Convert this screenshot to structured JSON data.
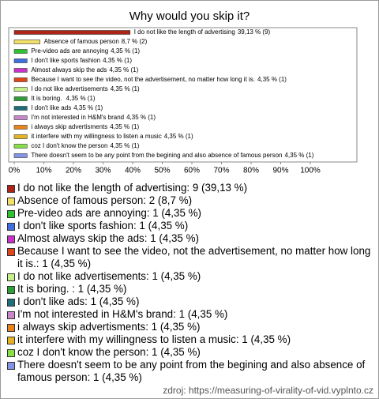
{
  "chart_data": {
    "type": "bar",
    "orientation": "horizontal",
    "title": "Why would you skip it?",
    "categories": [
      "I do not like the length of advertising",
      "Absence of famous person",
      "Pre-video ads are annoying",
      "I don't like sports fashion",
      "Almost always skip the ads",
      "Because I want to see the video, not the advertisement, no matter how long it is.",
      "I do not like advertisements",
      "It is boring. ",
      "I don't like ads",
      "I'm not interested in H&M's brand",
      "i always skip advertisments",
      "it interfere with my willingness to listen a music",
      "coz I don't know the person",
      "There doesn't seem to be any point from the begining and also absence of famous person"
    ],
    "values": [
      39.13,
      8.7,
      4.35,
      4.35,
      4.35,
      4.35,
      4.35,
      4.35,
      4.35,
      4.35,
      4.35,
      4.35,
      4.35,
      4.35
    ],
    "value_labels": [
      "39,13 % (9)",
      "8,7 % (2)",
      "4,35 % (1)",
      "4,35 % (1)",
      "4,35 % (1)",
      "4,35 % (1)",
      "4,35 % (1)",
      "4,35 % (1)",
      "4,35 % (1)",
      "4,35 % (1)",
      "4,35 % (1)",
      "4,35 % (1)",
      "4,35 % (1)",
      "4,35 % (1)"
    ],
    "colors": [
      "#b02418",
      "#f2e06a",
      "#2fc22f",
      "#3d6fe0",
      "#c633c6",
      "#e0461c",
      "#c4f08a",
      "#2e9e38",
      "#1f6f7a",
      "#c987c9",
      "#e8841e",
      "#e4b424",
      "#86e046",
      "#8494e4"
    ],
    "legend": [
      "I do not like the length of advertising: 9 (39,13 %)",
      "Absence of famous person: 2 (8,7 %)",
      "Pre-video ads are annoying: 1 (4,35 %)",
      "I don't like sports fashion: 1 (4,35 %)",
      "Almost always skip the ads: 1 (4,35 %)",
      "Because I want to see the video, not the advertisement, no matter how long it is.: 1 (4,35 %)",
      "I do not like advertisements: 1 (4,35 %)",
      "It is boring. : 1 (4,35 %)",
      "I don't like ads: 1 (4,35 %)",
      "I'm not interested in H&M's brand: 1 (4,35 %)",
      "i always skip advertisments: 1 (4,35 %)",
      "it interfere with my willingness to listen a music: 1 (4,35 %)",
      "coz I don't know the person: 1 (4,35 %)",
      "There doesn't seem to be any point from the begining and also absence of famous person: 1 (4,35 %)"
    ],
    "xlim": [
      0,
      100
    ],
    "xticks": [
      {
        "value": 0,
        "label": "0%"
      },
      {
        "value": 10,
        "label": "10%"
      },
      {
        "value": 20,
        "label": "20%"
      },
      {
        "value": 30,
        "label": "30%"
      },
      {
        "value": 40,
        "label": "40%"
      },
      {
        "value": 50,
        "label": "50%"
      },
      {
        "value": 60,
        "label": "60%"
      },
      {
        "value": 70,
        "label": "70%"
      },
      {
        "value": 80,
        "label": "80%"
      },
      {
        "value": 90,
        "label": "90%"
      },
      {
        "value": 100,
        "label": "100%"
      }
    ],
    "source": "zdroj: https://measuring-of-virality-of-vid.vyplnto.cz"
  }
}
